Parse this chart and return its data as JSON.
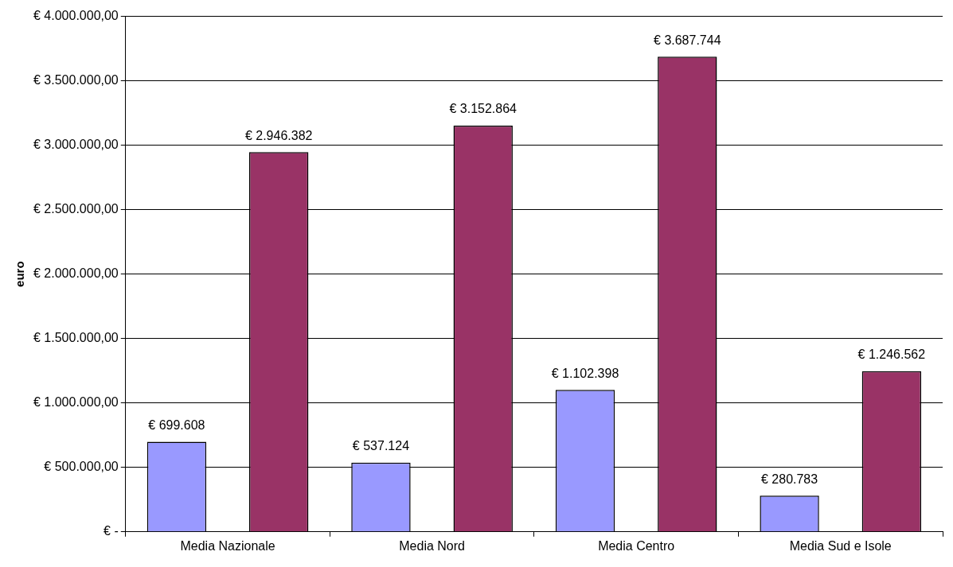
{
  "chart_data": {
    "type": "bar",
    "ylabel": "euro",
    "categories": [
      "Media Nazionale",
      "Media Nord",
      "Media Centro",
      "Media Sud e Isole"
    ],
    "series": [
      {
        "color": "#9999ff",
        "values": [
          699608,
          537124,
          1102398,
          280783
        ],
        "value_labels": [
          "€ 699.608",
          "€ 537.124",
          "€ 1.102.398",
          "€ 280.783"
        ]
      },
      {
        "color": "#993366",
        "values": [
          2946382,
          3152864,
          3687744,
          1246562
        ],
        "value_labels": [
          "€ 2.946.382",
          "€ 3.152.864",
          "€ 3.687.744",
          "€ 1.246.562"
        ]
      }
    ],
    "ylim": [
      0,
      4000000
    ],
    "yticks": [
      {
        "value": 0,
        "label": "€ -"
      },
      {
        "value": 500000,
        "label": "€ 500.000,00"
      },
      {
        "value": 1000000,
        "label": "€ 1.000.000,00"
      },
      {
        "value": 1500000,
        "label": "€ 1.500.000,00"
      },
      {
        "value": 2000000,
        "label": "€ 2.000.000,00"
      },
      {
        "value": 2500000,
        "label": "€ 2.500.000,00"
      },
      {
        "value": 3000000,
        "label": "€ 3.000.000,00"
      },
      {
        "value": 3500000,
        "label": "€ 3.500.000,00"
      },
      {
        "value": 4000000,
        "label": "€ 4.000.000,00"
      }
    ],
    "grid": "y",
    "legend": false
  }
}
